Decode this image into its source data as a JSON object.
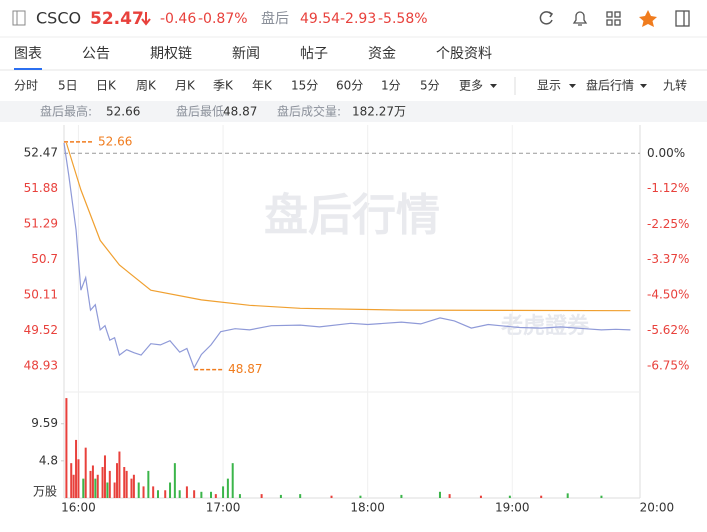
{
  "header": {
    "symbol": "CSCO",
    "price": "52.47",
    "change": "-0.46",
    "change_pct": "-0.87%",
    "session_label": "盘后",
    "session_price": "49.54",
    "session_change": "-2.93",
    "session_change_pct": "-5.58%"
  },
  "tabs": [
    "图表",
    "公告",
    "期权链",
    "新闻",
    "帖子",
    "资金",
    "个股资料"
  ],
  "periods": [
    "分时",
    "5日",
    "日K",
    "周K",
    "月K",
    "季K",
    "年K",
    "15分",
    "60分",
    "1分",
    "5分",
    "更多"
  ],
  "options": [
    "显示",
    "盘后行情",
    "九转"
  ],
  "info": [
    {
      "label": "盘后最高:",
      "value": "52.66"
    },
    {
      "label": "盘后最低:",
      "value": "48.87"
    },
    {
      "label": "盘后成交量:",
      "value": "182.27万"
    }
  ],
  "chart_data": {
    "type": "line",
    "watermark": "盘后行情",
    "logo": "老虎證券",
    "xlim": [
      -6,
      233
    ],
    "xticks": [
      {
        "value": 0,
        "label": "16:00"
      },
      {
        "value": 60,
        "label": "17:00"
      },
      {
        "value": 120,
        "label": "18:00"
      },
      {
        "value": 180,
        "label": "19:00"
      },
      {
        "value": 240,
        "label": "20:00"
      }
    ],
    "ylim": [
      48.53,
      52.94
    ],
    "yticks": [
      52.47,
      51.88,
      51.29,
      50.7,
      50.11,
      49.52,
      48.93
    ],
    "y2lim": [
      -7.51,
      0.9
    ],
    "y2ticks": [
      {
        "value": 0,
        "label": "0.00%"
      },
      {
        "value": -1.12,
        "label": "-1.12%"
      },
      {
        "value": -2.25,
        "label": "-2.25%"
      },
      {
        "value": -3.37,
        "label": "-3.37%"
      },
      {
        "value": -4.5,
        "label": "-4.50%"
      },
      {
        "value": -5.62,
        "label": "-5.62%"
      },
      {
        "value": -6.75,
        "label": "-6.75%"
      }
    ],
    "series": [
      {
        "color": "#8f9ad8",
        "x": [
          -6,
          -4,
          -1,
          1,
          3,
          5,
          7,
          9,
          11,
          13,
          15,
          17,
          20,
          23,
          26,
          30,
          34,
          38,
          42,
          45,
          48,
          51,
          55,
          59,
          65,
          71,
          80,
          92,
          100,
          113,
          120,
          134,
          142,
          150,
          156,
          163,
          170,
          175,
          183,
          192,
          200,
          210,
          217,
          223,
          229
        ],
        "values": [
          52.64,
          52.1,
          51.19,
          50.19,
          50.4,
          49.86,
          49.95,
          49.53,
          49.6,
          49.36,
          49.4,
          49.11,
          49.2,
          49.15,
          49.11,
          49.3,
          49.28,
          49.35,
          49.16,
          49.22,
          48.9,
          49.12,
          49.28,
          49.5,
          49.55,
          49.53,
          49.6,
          49.61,
          49.58,
          49.64,
          49.62,
          49.66,
          49.63,
          49.73,
          49.68,
          49.56,
          49.62,
          49.6,
          49.57,
          49.56,
          49.58,
          49.55,
          49.53,
          49.54,
          49.53
        ]
      },
      {
        "color": "#f0a030",
        "x": [
          -5,
          1,
          9,
          17,
          30,
          51,
          71,
          92,
          134,
          229
        ],
        "values": [
          52.64,
          51.86,
          51.02,
          50.61,
          50.19,
          50.03,
          49.94,
          49.89,
          49.86,
          49.85
        ]
      }
    ],
    "annotations": [
      {
        "value": 52.66,
        "x": -6
      },
      {
        "value": 48.87,
        "x": 48
      }
    ],
    "volume": {
      "unit": "万股",
      "ylim": [
        0,
        13.3
      ],
      "yticks": [
        9.59,
        4.8
      ],
      "x": [
        -5,
        -3,
        -2,
        -1,
        0,
        2,
        3,
        5,
        6,
        7,
        8,
        10,
        11,
        12,
        13,
        15,
        16,
        17,
        19,
        20,
        22,
        23,
        25,
        27,
        29,
        31,
        33,
        36,
        38,
        40,
        42,
        45,
        48,
        51,
        55,
        57,
        60,
        62,
        64,
        67,
        76,
        84,
        92,
        105,
        117,
        134,
        150,
        154,
        167,
        179,
        192,
        203,
        217
      ],
      "values": [
        12.9,
        4.5,
        3.0,
        7.5,
        5.0,
        2.5,
        6.5,
        3.5,
        4.2,
        2.5,
        3.0,
        4.0,
        5.5,
        2.0,
        3.5,
        2.0,
        4.5,
        6.0,
        4.0,
        3.5,
        2.5,
        3.0,
        2.0,
        1.5,
        3.5,
        1.5,
        1.0,
        1.0,
        2.0,
        4.5,
        1.0,
        1.5,
        1.0,
        0.8,
        0.8,
        0.5,
        1.5,
        2.5,
        4.5,
        0.5,
        0.5,
        0.4,
        0.5,
        0.3,
        0.3,
        0.4,
        0.8,
        0.5,
        0.3,
        0.3,
        0.3,
        0.6,
        0.3
      ],
      "colors": [
        "#e8413c",
        "#e8413c",
        "#e8413c",
        "#e8413c",
        "#e8413c",
        "#3bb54a",
        "#e8413c",
        "#e8413c",
        "#e8413c",
        "#3bb54a",
        "#e8413c",
        "#e8413c",
        "#e8413c",
        "#3bb54a",
        "#e8413c",
        "#e8413c",
        "#e8413c",
        "#e8413c",
        "#e8413c",
        "#e8413c",
        "#e8413c",
        "#e8413c",
        "#3bb54a",
        "#e8413c",
        "#3bb54a",
        "#e8413c",
        "#3bb54a",
        "#e8413c",
        "#3bb54a",
        "#3bb54a",
        "#3bb54a",
        "#e8413c",
        "#e8413c",
        "#3bb54a",
        "#3bb54a",
        "#e8413c",
        "#3bb54a",
        "#3bb54a",
        "#3bb54a",
        "#3bb54a",
        "#e8413c",
        "#3bb54a",
        "#3bb54a",
        "#e8413c",
        "#3bb54a",
        "#3bb54a",
        "#3bb54a",
        "#e8413c",
        "#e8413c",
        "#3bb54a",
        "#e8413c",
        "#3bb54a",
        "#3bb54a"
      ]
    }
  }
}
